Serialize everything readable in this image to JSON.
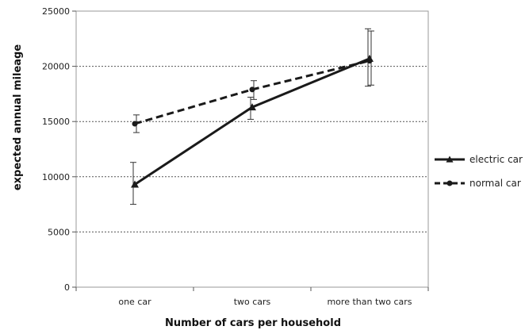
{
  "chart_data": {
    "type": "line",
    "title": "",
    "xlabel": "Number of cars per household",
    "ylabel": "expected annual mileage",
    "categories": [
      "one car",
      "two cars",
      "more than two cars"
    ],
    "ylim": [
      0,
      25000
    ],
    "yticks": [
      0,
      5000,
      10000,
      15000,
      20000,
      25000
    ],
    "grid": "horizontal dashed at each y tick",
    "legend_position": "right",
    "series": [
      {
        "name": "electric car",
        "marker": "triangle",
        "line_style": "solid",
        "color": "#1a1a1a",
        "values": [
          9300,
          16300,
          20700
        ],
        "error_low": [
          7500,
          15200,
          18200
        ],
        "error_high": [
          11300,
          17200,
          23400
        ]
      },
      {
        "name": "normal car",
        "marker": "circle",
        "line_style": "dashed",
        "color": "#1a1a1a",
        "values": [
          14800,
          17900,
          20500
        ],
        "error_low": [
          14000,
          17000,
          18300
        ],
        "error_high": [
          15600,
          18700,
          23200
        ]
      }
    ]
  }
}
